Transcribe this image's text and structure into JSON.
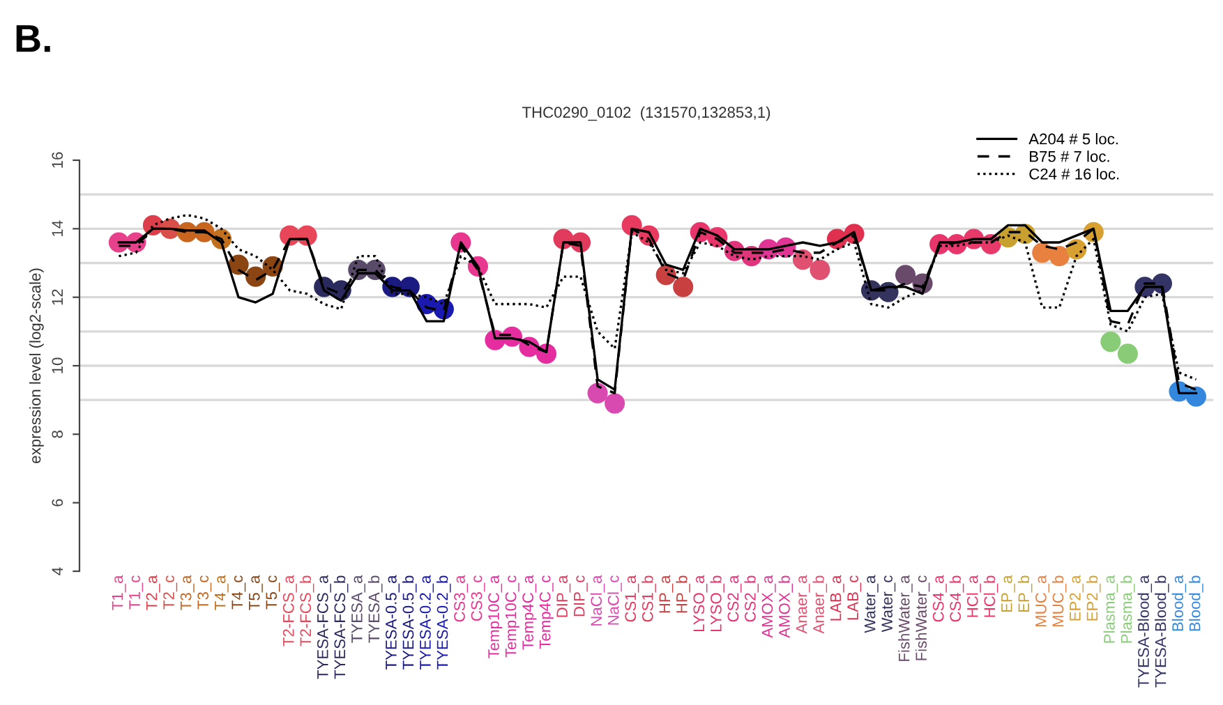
{
  "chart_data": {
    "type": "line",
    "title": "THC0290_0102  (131570,132853,1)",
    "ylabel": "expression level (log2-scale)",
    "annotations": [
      "B."
    ],
    "categories": [
      "T1_a",
      "T1_c",
      "T2_a",
      "T2_c",
      "T3_a",
      "T3_c",
      "T4_a",
      "T4_c",
      "T5_a",
      "T5_c",
      "T2-FCS_a",
      "T2-FCS_b",
      "TYESA-FCS_a",
      "TYESA-FCS_b",
      "TYESA_a",
      "TYESA_b",
      "TYESA-0.5_a",
      "TYESA-0.5_b",
      "TYESA-0.2_a",
      "TYESA-0.2_b",
      "CS3_a",
      "CS3_c",
      "Temp10C_a",
      "Temp10C_c",
      "Temp4C_a",
      "Temp4C_c",
      "DIP_a",
      "DIP_c",
      "NaCl_a",
      "NaCl_c",
      "CS1_a",
      "CS1_b",
      "HP_a",
      "HP_b",
      "LYSO_a",
      "LYSO_b",
      "CS2_a",
      "CS2_b",
      "AMOX_a",
      "AMOX_b",
      "Anaer_a",
      "Anaer_b",
      "LAB_a",
      "LAB_c",
      "Water_a",
      "Water_c",
      "FishWater_a",
      "FishWater_c",
      "CS4_a",
      "CS4_b",
      "HCl_a",
      "HCl_b",
      "EP_a",
      "EP_b",
      "MUC_a",
      "MUC_b",
      "EP2_a",
      "EP2_b",
      "Plasma_a",
      "Plasma_b",
      "TYESA-Blood_a",
      "TYESA-Blood_b",
      "Blood_a",
      "Blood_b"
    ],
    "series": [
      {
        "type": "scatter",
        "marker": "circle",
        "values": [
          13.6,
          13.6,
          14.1,
          14.0,
          13.9,
          13.9,
          13.7,
          12.95,
          12.6,
          12.9,
          13.8,
          13.8,
          12.3,
          12.2,
          12.8,
          12.8,
          12.3,
          12.3,
          11.8,
          11.65,
          13.6,
          12.9,
          10.75,
          10.85,
          10.55,
          10.35,
          13.7,
          13.6,
          9.2,
          8.9,
          14.1,
          13.8,
          12.65,
          12.3,
          13.9,
          13.75,
          13.35,
          13.2,
          13.4,
          13.45,
          13.1,
          12.8,
          13.7,
          13.85,
          12.2,
          12.15,
          12.65,
          12.4,
          13.55,
          13.55,
          13.7,
          13.55,
          13.75,
          13.85,
          13.3,
          13.2,
          13.4,
          13.9,
          10.7,
          10.35,
          12.3,
          12.4,
          9.25,
          9.1
        ],
        "colors": [
          "#e8418c",
          "#e8418c",
          "#dc3f4a",
          "#d9504a",
          "#c8651e",
          "#c8651e",
          "#c0701e",
          "#8b4513",
          "#8b4513",
          "#8b4513",
          "#e8475a",
          "#e8475a",
          "#2a2a5e",
          "#2a2a5e",
          "#5a4a6a",
          "#5a4a6a",
          "#1a1a80",
          "#1a1a80",
          "#1a1ab0",
          "#1a1ab0",
          "#e8378f",
          "#e8378f",
          "#e52d9f",
          "#e52d9f",
          "#e52d9f",
          "#e52d9f",
          "#e03a5c",
          "#e03a5c",
          "#d94ab0",
          "#d94ab0",
          "#e83a5e",
          "#e83a5e",
          "#c84040",
          "#c84040",
          "#e8356b",
          "#e8356b",
          "#e0357a",
          "#e0357a",
          "#e03594",
          "#e03594",
          "#e05070",
          "#e05070",
          "#e03050",
          "#e03050",
          "#33335e",
          "#33335e",
          "#6a4a6a",
          "#6a4a6a",
          "#e8356b",
          "#e8356b",
          "#e83a6a",
          "#e83a6a",
          "#c8a030",
          "#c8a030",
          "#e88040",
          "#e88040",
          "#d8a030",
          "#d8a030",
          "#88cc77",
          "#88cc77",
          "#333366",
          "#333366",
          "#3388dd",
          "#3388dd"
        ]
      },
      {
        "name": "A204 # 5 loc.",
        "color": "#000000",
        "line_style": "solid",
        "values": [
          13.6,
          13.6,
          14.0,
          14.0,
          13.95,
          13.95,
          13.6,
          12.0,
          11.85,
          12.1,
          13.7,
          13.7,
          12.2,
          11.9,
          12.7,
          12.7,
          12.2,
          12.2,
          11.3,
          11.3,
          13.6,
          12.9,
          10.8,
          10.8,
          10.7,
          10.4,
          13.6,
          13.6,
          9.6,
          9.3,
          14.0,
          13.9,
          12.95,
          12.8,
          14.0,
          13.8,
          13.4,
          13.4,
          13.4,
          13.5,
          13.6,
          13.5,
          13.6,
          13.9,
          12.2,
          12.3,
          12.3,
          12.1,
          13.6,
          13.6,
          13.7,
          13.7,
          14.1,
          14.1,
          13.6,
          13.6,
          13.8,
          14.0,
          11.6,
          11.6,
          12.3,
          12.3,
          9.2,
          9.2
        ]
      },
      {
        "name": "B75 # 7 loc.",
        "color": "#000000",
        "line_style": "dashed",
        "values": [
          13.5,
          13.5,
          14.0,
          14.0,
          13.9,
          13.9,
          13.7,
          12.8,
          12.5,
          12.8,
          13.7,
          13.7,
          12.3,
          12.1,
          12.8,
          12.8,
          12.3,
          12.2,
          11.7,
          11.6,
          13.5,
          12.8,
          10.9,
          10.9,
          10.6,
          10.4,
          13.6,
          13.5,
          9.4,
          9.2,
          14.0,
          13.7,
          12.7,
          12.5,
          13.9,
          13.7,
          13.3,
          13.3,
          13.3,
          13.4,
          13.3,
          13.3,
          13.6,
          13.8,
          12.2,
          12.2,
          12.4,
          12.3,
          13.5,
          13.6,
          13.6,
          13.6,
          13.9,
          13.9,
          13.5,
          13.4,
          13.6,
          14.0,
          11.3,
          11.2,
          12.4,
          12.4,
          9.5,
          9.3
        ]
      },
      {
        "name": "C24 # 16 loc.",
        "color": "#000000",
        "line_style": "dotted",
        "values": [
          13.2,
          13.3,
          14.1,
          14.3,
          14.4,
          14.3,
          14.0,
          13.4,
          13.2,
          12.8,
          12.2,
          12.1,
          11.8,
          11.65,
          13.2,
          13.2,
          12.1,
          12.1,
          12.0,
          11.8,
          13.2,
          12.9,
          11.8,
          11.8,
          11.8,
          11.7,
          12.6,
          12.6,
          11.0,
          10.5,
          13.9,
          13.6,
          12.8,
          12.7,
          13.6,
          13.5,
          13.2,
          13.1,
          13.2,
          13.2,
          13.2,
          13.1,
          13.4,
          13.6,
          11.8,
          11.7,
          12.0,
          12.2,
          13.5,
          13.5,
          13.6,
          13.6,
          13.8,
          13.6,
          11.7,
          11.7,
          13.2,
          13.7,
          11.2,
          11.0,
          12.0,
          12.1,
          9.8,
          9.6
        ]
      }
    ],
    "ylim": [
      4,
      16
    ],
    "yticks": [
      4,
      6,
      8,
      10,
      12,
      14,
      16
    ],
    "ref_lines": [
      {
        "axis": "y",
        "value": 9,
        "color": "#d9d9d9"
      },
      {
        "axis": "y",
        "value": 10,
        "color": "#d9d9d9"
      },
      {
        "axis": "y",
        "value": 11,
        "color": "#d9d9d9"
      },
      {
        "axis": "y",
        "value": 12,
        "color": "#d9d9d9"
      },
      {
        "axis": "y",
        "value": 13,
        "color": "#d9d9d9"
      },
      {
        "axis": "y",
        "value": 14,
        "color": "#d9d9d9"
      },
      {
        "axis": "y",
        "value": 15,
        "color": "#d9d9d9"
      }
    ],
    "legend": "top right",
    "grid": false
  }
}
